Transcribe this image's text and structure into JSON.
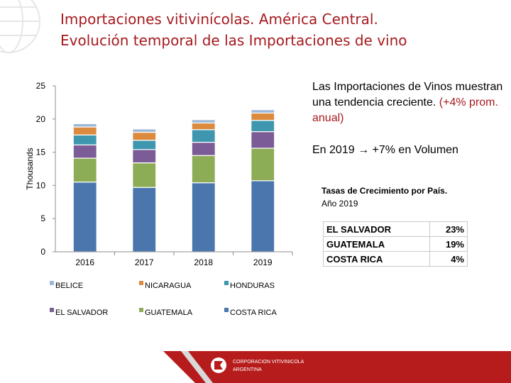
{
  "title": {
    "line1": "Importaciones vitivinícolas. América Central.",
    "line2": "Evolución temporal de las Importaciones de vino"
  },
  "info": {
    "text": "Las Importaciones de Vinos muestran una tendencia creciente.",
    "highlight": "(+4% prom. anual)"
  },
  "growth": {
    "prefix": "En 2019",
    "arrow": "→",
    "text": "+7% en Volumen"
  },
  "rates": {
    "title": "Tasas de Crecimiento por País.",
    "year": "Año 2019",
    "rows": [
      {
        "country": "EL SALVADOR",
        "value": "23%"
      },
      {
        "country": "GUATEMALA",
        "value": "19%"
      },
      {
        "country": "COSTA RICA",
        "value": "4%"
      }
    ]
  },
  "footer": {
    "org_line1": "CORPORACION VITIVINICOLA",
    "org_line2": "ARGENTINA"
  },
  "chart_data": {
    "type": "bar",
    "stacked": true,
    "categories": [
      "2016",
      "2017",
      "2018",
      "2019"
    ],
    "ylabel": "Thousands",
    "ylim": [
      0,
      25
    ],
    "yticks": [
      0,
      5,
      10,
      15,
      20,
      25
    ],
    "series": [
      {
        "name": "COSTA RICA",
        "color": "#4a76ad",
        "values": [
          10.5,
          9.7,
          10.4,
          10.7
        ]
      },
      {
        "name": "GUATEMALA",
        "color": "#8dac56",
        "values": [
          3.6,
          3.7,
          4.1,
          4.9
        ]
      },
      {
        "name": "EL SALVADOR",
        "color": "#7b5c96",
        "values": [
          2.0,
          2.0,
          2.0,
          2.5
        ]
      },
      {
        "name": "HONDURAS",
        "color": "#3e97ae",
        "values": [
          1.5,
          1.4,
          1.9,
          1.7
        ]
      },
      {
        "name": "NICARAGUA",
        "color": "#dc8a3e",
        "values": [
          1.2,
          1.2,
          1.0,
          1.1
        ]
      },
      {
        "name": "BELICE",
        "color": "#9cb7d8",
        "values": [
          0.5,
          0.5,
          0.5,
          0.5
        ]
      }
    ],
    "legend_order": [
      "BELICE",
      "NICARAGUA",
      "HONDURAS",
      "EL SALVADOR",
      "GUATEMALA",
      "COSTA RICA"
    ]
  }
}
